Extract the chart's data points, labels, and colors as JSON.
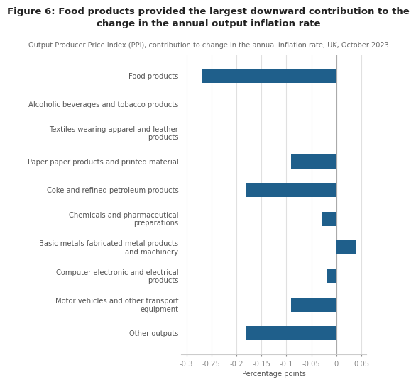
{
  "title": "Figure 6: Food products provided the largest downward contribution to the change in the annual output inflation rate",
  "subtitle": "Output Producer Price Index (PPI), contribution to change in the annual inflation rate, UK, October 2023",
  "categories": [
    "Food products",
    "Alcoholic beverages and tobacco products",
    "Textiles wearing apparel and leather\nproducts",
    "Paper paper products and printed material",
    "Coke and refined petroleum products",
    "Chemicals and pharmaceutical\npreparations",
    "Basic metals fabricated metal products\nand machinery",
    "Computer electronic and electrical\nproducts",
    "Motor vehicles and other transport\nequipment",
    "Other outputs"
  ],
  "values": [
    -0.27,
    0.0,
    0.0,
    -0.09,
    -0.18,
    -0.03,
    0.04,
    -0.02,
    -0.09,
    -0.18
  ],
  "bar_color": "#1f5f8b",
  "xlim": [
    -0.31,
    0.06
  ],
  "xticks": [
    -0.3,
    -0.25,
    -0.2,
    -0.15,
    -0.1,
    -0.05,
    0.0,
    0.05
  ],
  "xtick_labels": [
    "-0.3",
    "-0.25",
    "-0.2",
    "-0.15",
    "-0.1",
    "-0.05",
    "0",
    "0.05"
  ],
  "xlabel": "Percentage points",
  "background_color": "#ffffff",
  "title_fontsize": 9.5,
  "subtitle_fontsize": 7.0,
  "label_fontsize": 7.2,
  "tick_fontsize": 7.2
}
